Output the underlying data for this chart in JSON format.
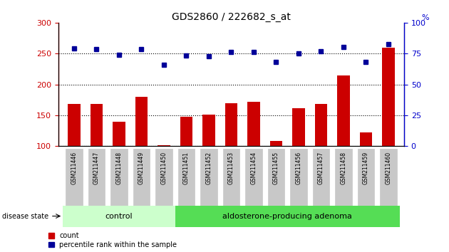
{
  "title": "GDS2860 / 222682_s_at",
  "samples": [
    "GSM211446",
    "GSM211447",
    "GSM211448",
    "GSM211449",
    "GSM211450",
    "GSM211451",
    "GSM211452",
    "GSM211453",
    "GSM211454",
    "GSM211455",
    "GSM211456",
    "GSM211457",
    "GSM211458",
    "GSM211459",
    "GSM211460"
  ],
  "counts": [
    168,
    168,
    140,
    180,
    101,
    148,
    151,
    170,
    172,
    109,
    161,
    168,
    215,
    122,
    260
  ],
  "percentiles_left_scale": [
    258,
    257,
    248,
    257,
    232,
    247,
    246,
    252,
    253,
    236,
    250,
    254,
    261,
    236,
    265
  ],
  "control_count": 5,
  "adenoma_count": 10,
  "control_label": "control",
  "adenoma_label": "aldosterone-producing adenoma",
  "disease_state_label": "disease state",
  "legend_count": "count",
  "legend_percentile": "percentile rank within the sample",
  "ylim_left": [
    100,
    300
  ],
  "ylim_right": [
    0,
    100
  ],
  "yticks_left": [
    100,
    150,
    200,
    250,
    300
  ],
  "yticks_right": [
    0,
    25,
    50,
    75,
    100
  ],
  "bar_color": "#cc0000",
  "dot_color": "#000099",
  "control_bg": "#ccffcc",
  "adenoma_bg": "#55dd55",
  "tick_label_bg": "#c8c8c8",
  "grid_dotted_color": "#000000",
  "left_tick_color": "#cc0000",
  "right_tick_color": "#0000cc",
  "bar_width": 0.55
}
